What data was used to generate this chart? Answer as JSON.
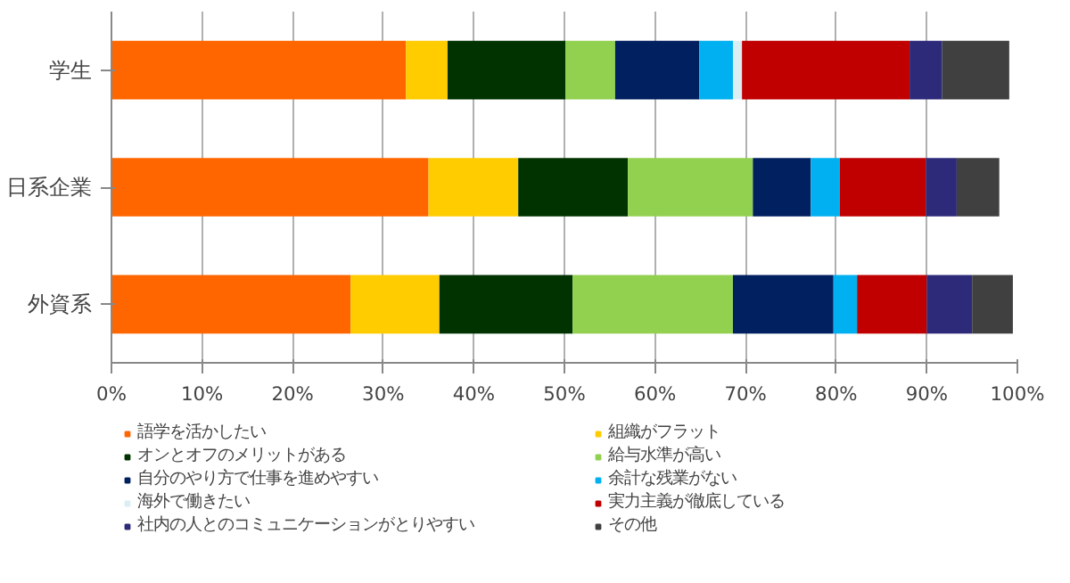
{
  "chart_data": {
    "type": "bar",
    "orientation": "horizontal",
    "stacked": true,
    "categories": [
      "学生",
      "日系企業",
      "外資系"
    ],
    "series": [
      {
        "name": "語学を活かしたい",
        "color": "#ff6600",
        "values": [
          32.5,
          35.0,
          26.4
        ]
      },
      {
        "name": "組織がフラット",
        "color": "#ffcc00",
        "values": [
          4.6,
          9.9,
          9.8
        ]
      },
      {
        "name": "オンとオフのメリットがある",
        "color": "#003300",
        "values": [
          13.0,
          12.1,
          14.7
        ]
      },
      {
        "name": "給与水準が高い",
        "color": "#92d050",
        "values": [
          5.5,
          13.8,
          17.7
        ]
      },
      {
        "name": "自分のやり方で仕事を進めやすい",
        "color": "#002060",
        "values": [
          9.3,
          6.4,
          11.1
        ]
      },
      {
        "name": "余計な残業がない",
        "color": "#00b0f0",
        "values": [
          3.7,
          3.2,
          2.6
        ]
      },
      {
        "name": "海外で働きたい",
        "color": "#dbeef4",
        "values": [
          1.0,
          0,
          0
        ]
      },
      {
        "name": "実力主義が徹底している",
        "color": "#c00000",
        "values": [
          18.5,
          9.5,
          7.7
        ]
      },
      {
        "name": "社内の人とのコミュニケーションがとりやすい",
        "color": "#2e2a7a",
        "values": [
          3.6,
          3.4,
          5.0
        ]
      },
      {
        "name": "その他",
        "color": "#404040",
        "values": [
          7.4,
          4.7,
          4.5
        ]
      }
    ],
    "xlim": [
      0,
      100
    ],
    "xticks": [
      {
        "value": 0,
        "label": "0%"
      },
      {
        "value": 10,
        "label": "10%"
      },
      {
        "value": 20,
        "label": "20%"
      },
      {
        "value": 30,
        "label": "30%"
      },
      {
        "value": 40,
        "label": "40%"
      },
      {
        "value": 50,
        "label": "50%"
      },
      {
        "value": 60,
        "label": "60%"
      },
      {
        "value": 70,
        "label": "70%"
      },
      {
        "value": 80,
        "label": "80%"
      },
      {
        "value": 90,
        "label": "90%"
      },
      {
        "value": 100,
        "label": "100%"
      }
    ],
    "grid": "x",
    "legend": "bottom"
  }
}
